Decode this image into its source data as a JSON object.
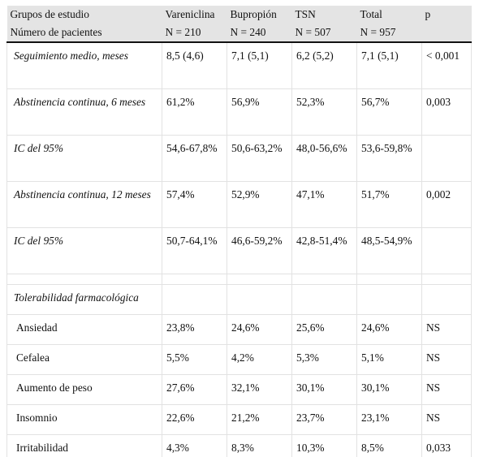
{
  "header": {
    "row1": [
      "Grupos de estudio",
      "Vareniclina",
      "Bupropión",
      "TSN",
      "Total",
      "p"
    ],
    "row2": [
      "Número de pacientes",
      "N = 210",
      "N = 240",
      "N = 507",
      "N = 957",
      ""
    ]
  },
  "rows": [
    {
      "label": "Seguimiento medio, meses",
      "values": [
        "8,5 (4,6)",
        "7,1 (5,1)",
        "6,2 (5,2)",
        "7,1 (5,1)",
        "< 0,001"
      ]
    },
    {
      "label": "Abstinencia continua, 6 meses",
      "values": [
        "61,2%",
        "56,9%",
        "52,3%",
        "56,7%",
        "0,003"
      ]
    },
    {
      "label": "IC del 95%",
      "values": [
        "54,6-67,8%",
        "50,6-63,2%",
        "48,0-56,6%",
        "53,6-59,8%",
        ""
      ]
    },
    {
      "label": "Abstinencia continua, 12 meses",
      "values": [
        "57,4%",
        "52,9%",
        "47,1%",
        "51,7%",
        "0,002"
      ]
    },
    {
      "label": "IC del 95%",
      "values": [
        "50,7-64,1%",
        "46,6-59,2%",
        "42,8-51,4%",
        "48,5-54,9%",
        ""
      ]
    }
  ],
  "section_title": "Tolerabilidad farmacológica",
  "tolerability": [
    {
      "label": "Ansiedad",
      "values": [
        "23,8%",
        "24,6%",
        "25,6%",
        "24,6%",
        "NS"
      ]
    },
    {
      "label": "Cefalea",
      "values": [
        "5,5%",
        "4,2%",
        "5,3%",
        "5,1%",
        "NS"
      ]
    },
    {
      "label": "Aumento de peso",
      "values": [
        "27,6%",
        "32,1%",
        "30,1%",
        "30,1%",
        "NS"
      ]
    },
    {
      "label": "Insomnio",
      "values": [
        "22,6%",
        "21,2%",
        "23,7%",
        "23,1%",
        "NS"
      ]
    },
    {
      "label": "Irritabilidad",
      "values": [
        "4,3%",
        "8,3%",
        "10,3%",
        "8,5%",
        "0,033"
      ]
    }
  ]
}
